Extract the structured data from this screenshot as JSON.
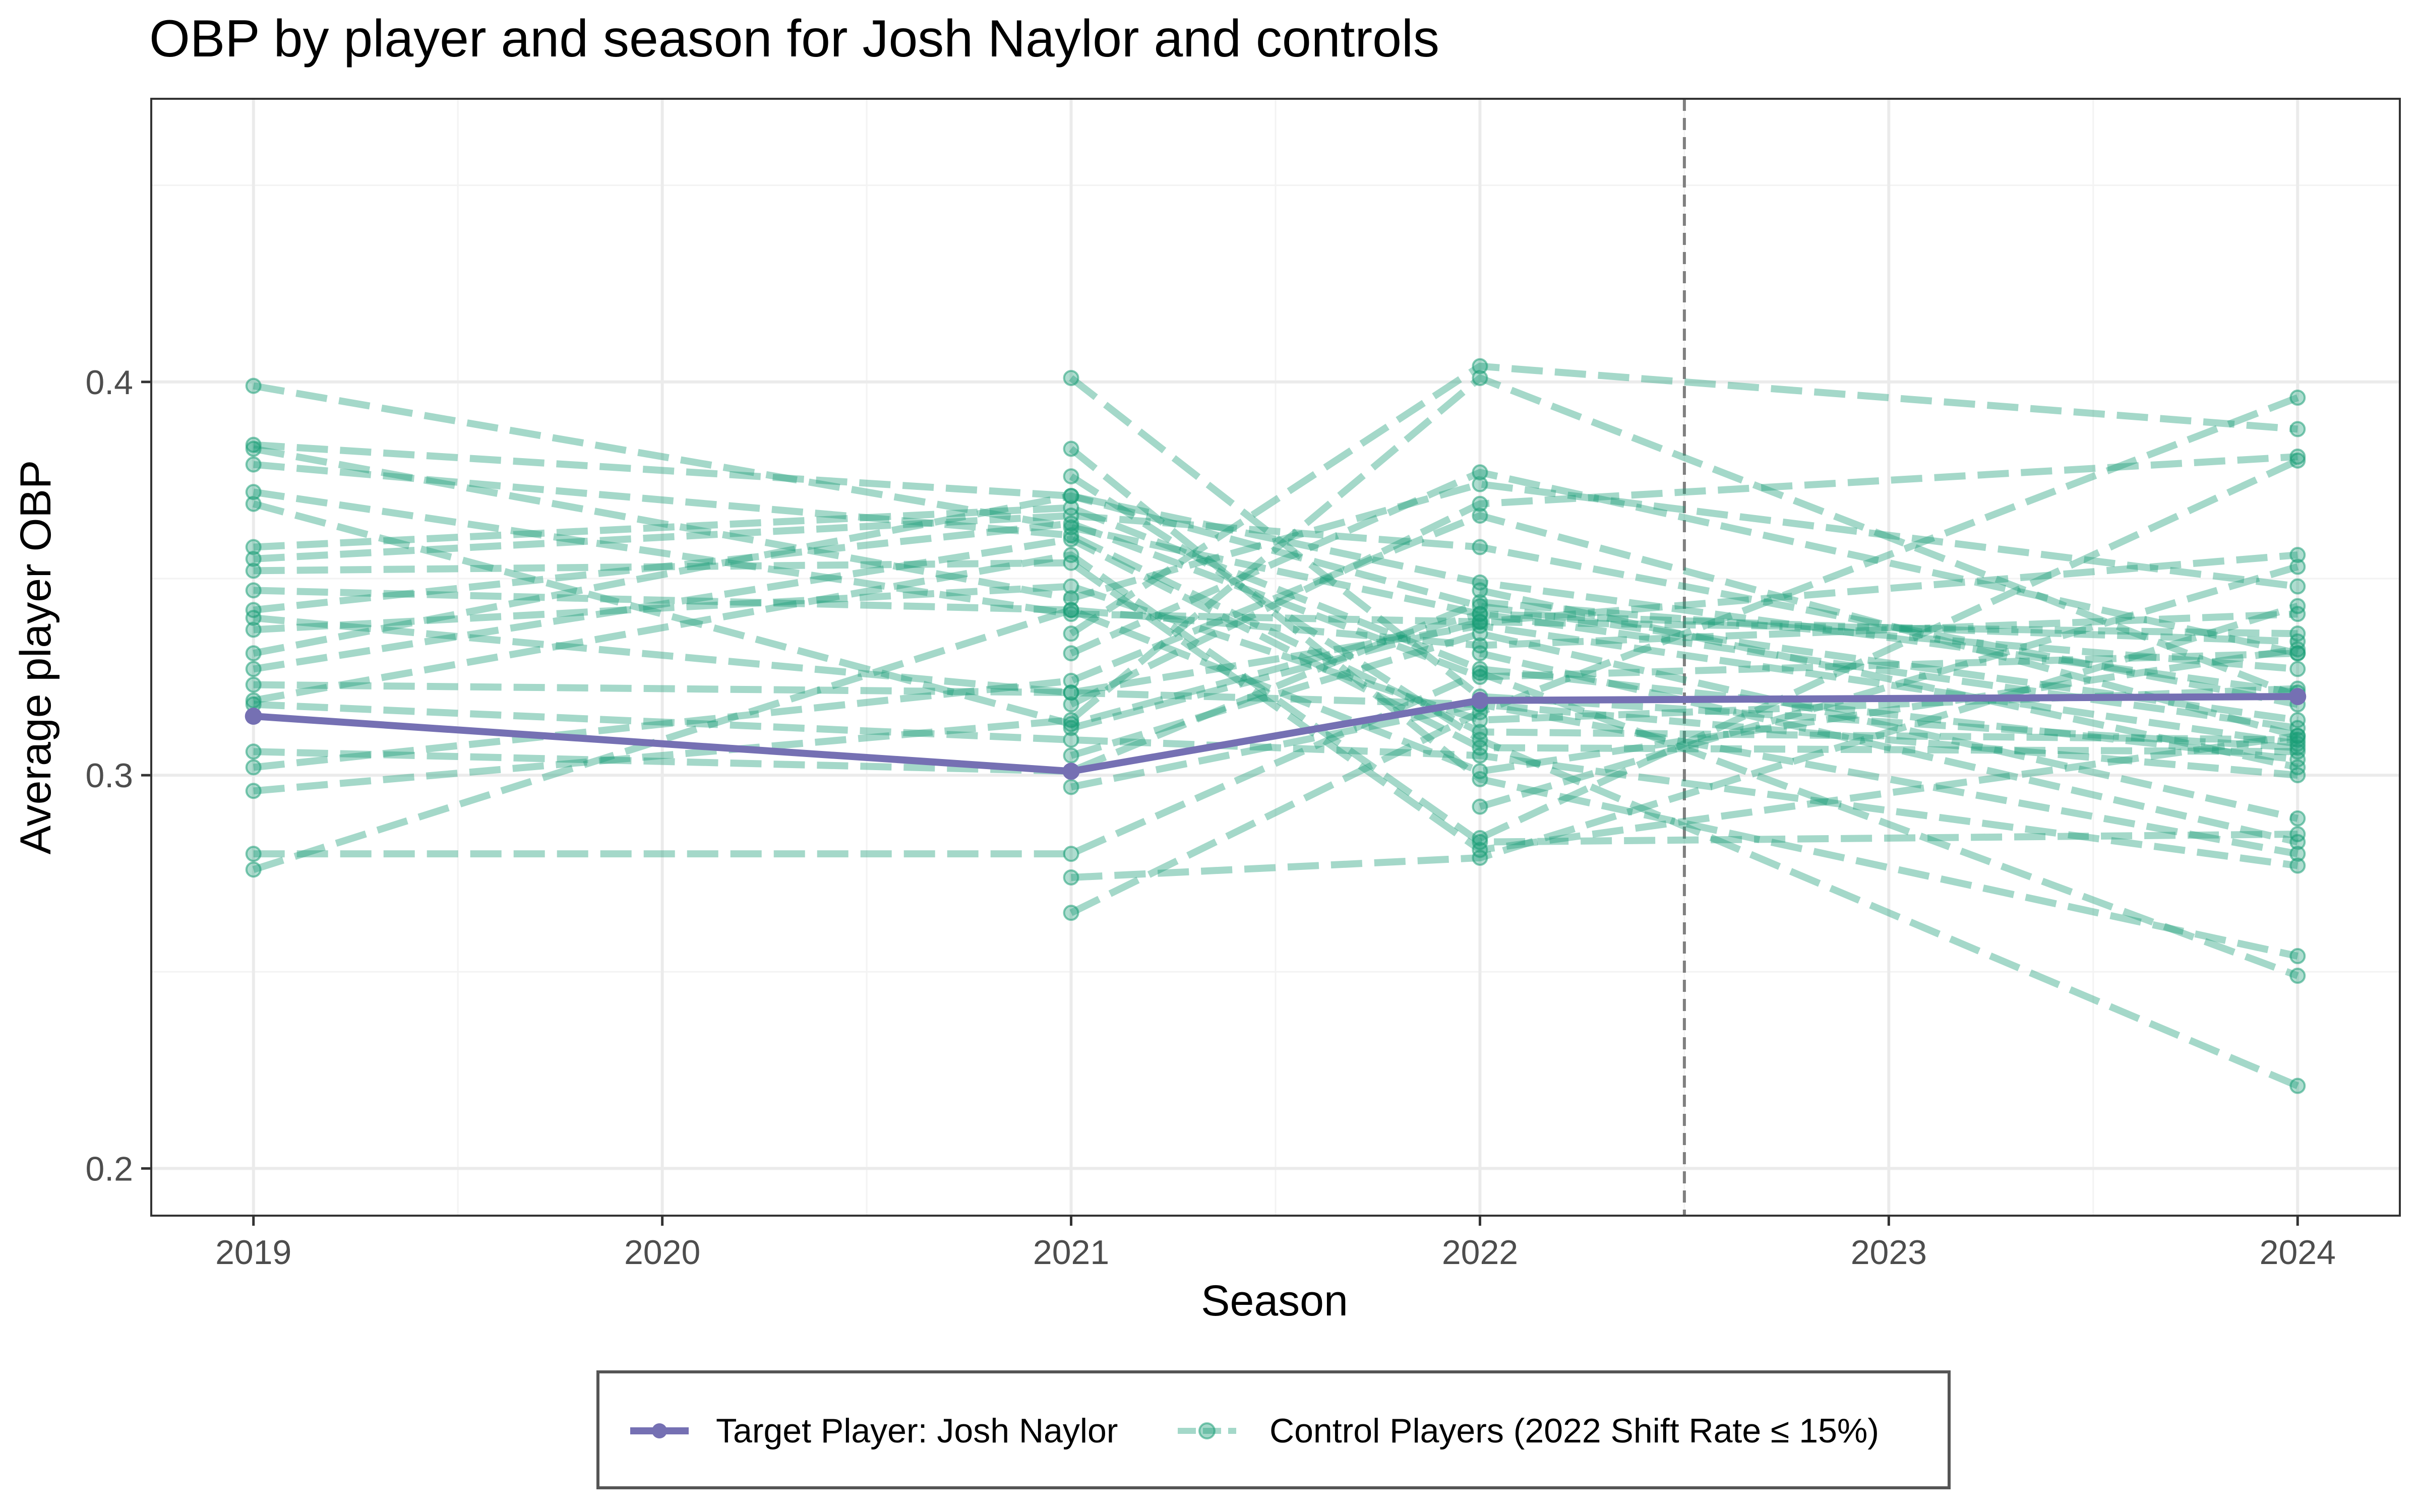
{
  "chart_data": {
    "type": "line",
    "title": "OBP by player and season for Josh Naylor and controls",
    "xlabel": "Season",
    "ylabel": "Average player OBP",
    "x": [
      2019,
      2020,
      2021,
      2022,
      2023,
      2024
    ],
    "x_ticks": [
      "2019",
      "2020",
      "2021",
      "2022",
      "2023",
      "2024"
    ],
    "y_ticks": [
      "0.2",
      "0.3",
      "0.4"
    ],
    "xlim": [
      2018.75,
      2024.25
    ],
    "ylim": [
      0.188,
      0.472
    ],
    "grid": true,
    "vertical_reference_line": {
      "x": 2022.5,
      "style": "dashed",
      "color": "#7f7f7f"
    },
    "legend": {
      "position": "bottom",
      "entries": [
        "Target Player: Josh Naylor",
        "Control Players (2022 Shift Rate ≤ 15%)"
      ]
    },
    "colors": {
      "target": "#7570b3",
      "control": "#1b9e77",
      "grid_major": "#ebebeb",
      "grid_minor": "#f3f3f3",
      "panel_border": "#333333"
    },
    "target_series": {
      "name": "Target Player: Josh Naylor",
      "points": [
        [
          2019,
          0.315
        ],
        [
          2021,
          0.301
        ],
        [
          2022,
          0.319
        ],
        [
          2024,
          0.32
        ]
      ]
    },
    "control_series": [
      {
        "name": "Control Players (2022 Shift Rate ≤ 15%)",
        "points": [
          [
            2019,
            0.399
          ],
          [
            2021,
            0.363
          ],
          [
            2022,
            0.341
          ],
          [
            2024,
            0.312
          ]
        ]
      },
      {
        "points": [
          [
            2019,
            0.384
          ],
          [
            2021,
            0.371
          ],
          [
            2022,
            0.349
          ],
          [
            2024,
            0.321
          ]
        ]
      },
      {
        "points": [
          [
            2019,
            0.383
          ],
          [
            2021,
            0.345
          ],
          [
            2022,
            0.374
          ],
          [
            2024,
            0.348
          ]
        ]
      },
      {
        "points": [
          [
            2019,
            0.379
          ],
          [
            2021,
            0.361
          ],
          [
            2022,
            0.311
          ],
          [
            2024,
            0.309
          ]
        ]
      },
      {
        "points": [
          [
            2019,
            0.372
          ],
          [
            2021,
            0.341
          ],
          [
            2022,
            0.339
          ],
          [
            2024,
            0.356
          ]
        ]
      },
      {
        "points": [
          [
            2019,
            0.369
          ],
          [
            2021,
            0.313
          ],
          [
            2022,
            0.341
          ],
          [
            2024,
            0.334
          ]
        ]
      },
      {
        "points": [
          [
            2019,
            0.358
          ],
          [
            2021,
            0.368
          ],
          [
            2022,
            0.327
          ],
          [
            2024,
            0.304
          ]
        ]
      },
      {
        "points": [
          [
            2019,
            0.355
          ],
          [
            2021,
            0.366
          ],
          [
            2022,
            0.358
          ],
          [
            2024,
            0.318
          ]
        ]
      },
      {
        "points": [
          [
            2019,
            0.352
          ],
          [
            2021,
            0.354
          ],
          [
            2022,
            0.281
          ],
          [
            2024,
            0.31
          ]
        ]
      },
      {
        "points": [
          [
            2019,
            0.347
          ],
          [
            2021,
            0.342
          ],
          [
            2022,
            0.333
          ],
          [
            2024,
            0.341
          ]
        ]
      },
      {
        "points": [
          [
            2019,
            0.342
          ],
          [
            2021,
            0.364
          ],
          [
            2022,
            0.325
          ],
          [
            2024,
            0.331
          ]
        ]
      },
      {
        "points": [
          [
            2019,
            0.34
          ],
          [
            2021,
            0.321
          ],
          [
            2022,
            0.318
          ],
          [
            2024,
            0.28
          ]
        ]
      },
      {
        "points": [
          [
            2019,
            0.337
          ],
          [
            2021,
            0.348
          ],
          [
            2022,
            0.314
          ],
          [
            2024,
            0.322
          ]
        ]
      },
      {
        "points": [
          [
            2019,
            0.331
          ],
          [
            2021,
            0.371
          ],
          [
            2022,
            0.343
          ],
          [
            2024,
            0.314
          ]
        ]
      },
      {
        "points": [
          [
            2019,
            0.327
          ],
          [
            2021,
            0.36
          ],
          [
            2022,
            0.307
          ],
          [
            2024,
            0.306
          ]
        ]
      },
      {
        "points": [
          [
            2019,
            0.323
          ],
          [
            2021,
            0.321
          ],
          [
            2022,
            0.338
          ],
          [
            2024,
            0.308
          ]
        ]
      },
      {
        "points": [
          [
            2019,
            0.319
          ],
          [
            2021,
            0.356
          ],
          [
            2022,
            0.283
          ],
          [
            2024,
            0.285
          ]
        ]
      },
      {
        "points": [
          [
            2019,
            0.318
          ],
          [
            2021,
            0.309
          ],
          [
            2022,
            0.305
          ],
          [
            2024,
            0.277
          ]
        ]
      },
      {
        "points": [
          [
            2019,
            0.306
          ],
          [
            2021,
            0.301
          ],
          [
            2022,
            0.344
          ],
          [
            2024,
            0.327
          ]
        ]
      },
      {
        "points": [
          [
            2019,
            0.302
          ],
          [
            2021,
            0.324
          ],
          [
            2022,
            0.366
          ],
          [
            2024,
            0.31
          ]
        ]
      },
      {
        "points": [
          [
            2019,
            0.296
          ],
          [
            2021,
            0.314
          ],
          [
            2022,
            0.401
          ],
          [
            2024,
            0.32
          ]
        ]
      },
      {
        "points": [
          [
            2019,
            0.28
          ],
          [
            2021,
            0.28
          ],
          [
            2022,
            0.326
          ],
          [
            2024,
            0.249
          ]
        ]
      },
      {
        "points": [
          [
            2019,
            0.276
          ],
          [
            2021,
            0.342
          ],
          [
            2022,
            0.301
          ],
          [
            2024,
            0.332
          ]
        ]
      },
      {
        "points": [
          [
            2021,
            0.401
          ],
          [
            2022,
            0.32
          ],
          [
            2024,
            0.307
          ]
        ]
      },
      {
        "points": [
          [
            2021,
            0.383
          ],
          [
            2022,
            0.299
          ],
          [
            2024,
            0.254
          ]
        ]
      },
      {
        "points": [
          [
            2021,
            0.376
          ],
          [
            2022,
            0.309
          ],
          [
            2024,
            0.221
          ]
        ]
      },
      {
        "points": [
          [
            2021,
            0.336
          ],
          [
            2022,
            0.404
          ],
          [
            2024,
            0.388
          ]
        ]
      },
      {
        "points": [
          [
            2021,
            0.331
          ],
          [
            2022,
            0.377
          ],
          [
            2024,
            0.331
          ]
        ]
      },
      {
        "points": [
          [
            2021,
            0.318
          ],
          [
            2022,
            0.369
          ],
          [
            2024,
            0.381
          ]
        ]
      },
      {
        "points": [
          [
            2021,
            0.312
          ],
          [
            2022,
            0.339
          ],
          [
            2024,
            0.336
          ]
        ]
      },
      {
        "points": [
          [
            2021,
            0.305
          ],
          [
            2022,
            0.336
          ],
          [
            2024,
            0.289
          ]
        ]
      },
      {
        "points": [
          [
            2021,
            0.297
          ],
          [
            2022,
            0.318
          ],
          [
            2024,
            0.3
          ]
        ]
      },
      {
        "points": [
          [
            2021,
            0.274
          ],
          [
            2022,
            0.279
          ],
          [
            2024,
            0.343
          ]
        ]
      },
      {
        "points": [
          [
            2021,
            0.265
          ],
          [
            2022,
            0.316
          ],
          [
            2024,
            0.396
          ]
        ]
      },
      {
        "points": [
          [
            2022,
            0.292
          ],
          [
            2024,
            0.353
          ]
        ]
      },
      {
        "points": [
          [
            2022,
            0.284
          ],
          [
            2024,
            0.38
          ]
        ]
      },
      {
        "points": [
          [
            2022,
            0.331
          ],
          [
            2024,
            0.283
          ]
        ]
      },
      {
        "points": [
          [
            2022,
            0.347
          ],
          [
            2024,
            0.302
          ]
        ]
      }
    ]
  }
}
